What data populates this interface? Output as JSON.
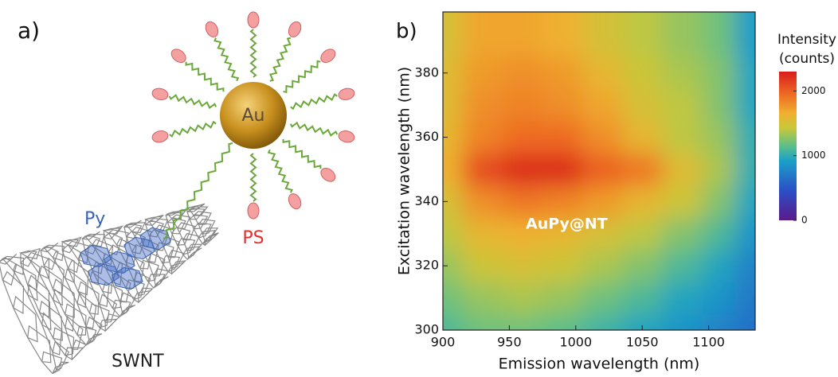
{
  "panel_a": {
    "label": "a)",
    "sphere": "Au",
    "ligand": "PS",
    "linker": "Py",
    "tube": "SWNT"
  },
  "chart_data": {
    "type": "heatmap",
    "panel_label": "b)",
    "x_label": "Emission wavelength (nm)",
    "y_label": "Excitation wavelength (nm)",
    "annotation": "AuPy@NT",
    "x": [
      900,
      930,
      960,
      990,
      1020,
      1050,
      1080,
      1110,
      1130
    ],
    "y": [
      300,
      310,
      320,
      330,
      340,
      350,
      360,
      370,
      380,
      390
    ],
    "z": [
      [
        1100,
        1200,
        1200,
        1150,
        1050,
        950,
        850,
        750,
        650
      ],
      [
        1200,
        1300,
        1350,
        1300,
        1200,
        1100,
        950,
        850,
        700
      ],
      [
        1300,
        1450,
        1500,
        1450,
        1350,
        1250,
        1100,
        950,
        750
      ],
      [
        1400,
        1600,
        1650,
        1600,
        1500,
        1400,
        1250,
        1100,
        850
      ],
      [
        1500,
        1800,
        1900,
        1850,
        1750,
        1600,
        1450,
        1250,
        950
      ],
      [
        1650,
        2100,
        2250,
        2250,
        2000,
        1900,
        1550,
        1350,
        1000
      ],
      [
        1600,
        1850,
        1950,
        1950,
        1800,
        1600,
        1400,
        1300,
        1000
      ],
      [
        1550,
        1800,
        1850,
        1800,
        1700,
        1500,
        1400,
        1250,
        950
      ],
      [
        1550,
        1750,
        1800,
        1750,
        1600,
        1450,
        1350,
        1250,
        950
      ],
      [
        1500,
        1700,
        1700,
        1650,
        1500,
        1400,
        1300,
        1200,
        900
      ]
    ],
    "xlim": [
      900,
      1135
    ],
    "ylim": [
      300,
      399
    ],
    "xticks": [
      900,
      950,
      1000,
      1050,
      1100
    ],
    "yticks": [
      300,
      320,
      340,
      360,
      380
    ],
    "colormap": [
      {
        "stop": 0,
        "color": "#5b1a8a"
      },
      {
        "stop": 0.2,
        "color": "#2b4fc6"
      },
      {
        "stop": 0.4,
        "color": "#1aa0c8"
      },
      {
        "stop": 0.5,
        "color": "#5cbf8a"
      },
      {
        "stop": 0.62,
        "color": "#c8c83a"
      },
      {
        "stop": 0.72,
        "color": "#f0b030"
      },
      {
        "stop": 0.85,
        "color": "#ee6a22"
      },
      {
        "stop": 1,
        "color": "#d81e1e"
      }
    ],
    "colorbar": {
      "title": [
        "Intensity",
        "(counts)"
      ],
      "zlim": [
        0,
        2300
      ],
      "ticks": [
        0,
        1000,
        2000
      ]
    }
  }
}
